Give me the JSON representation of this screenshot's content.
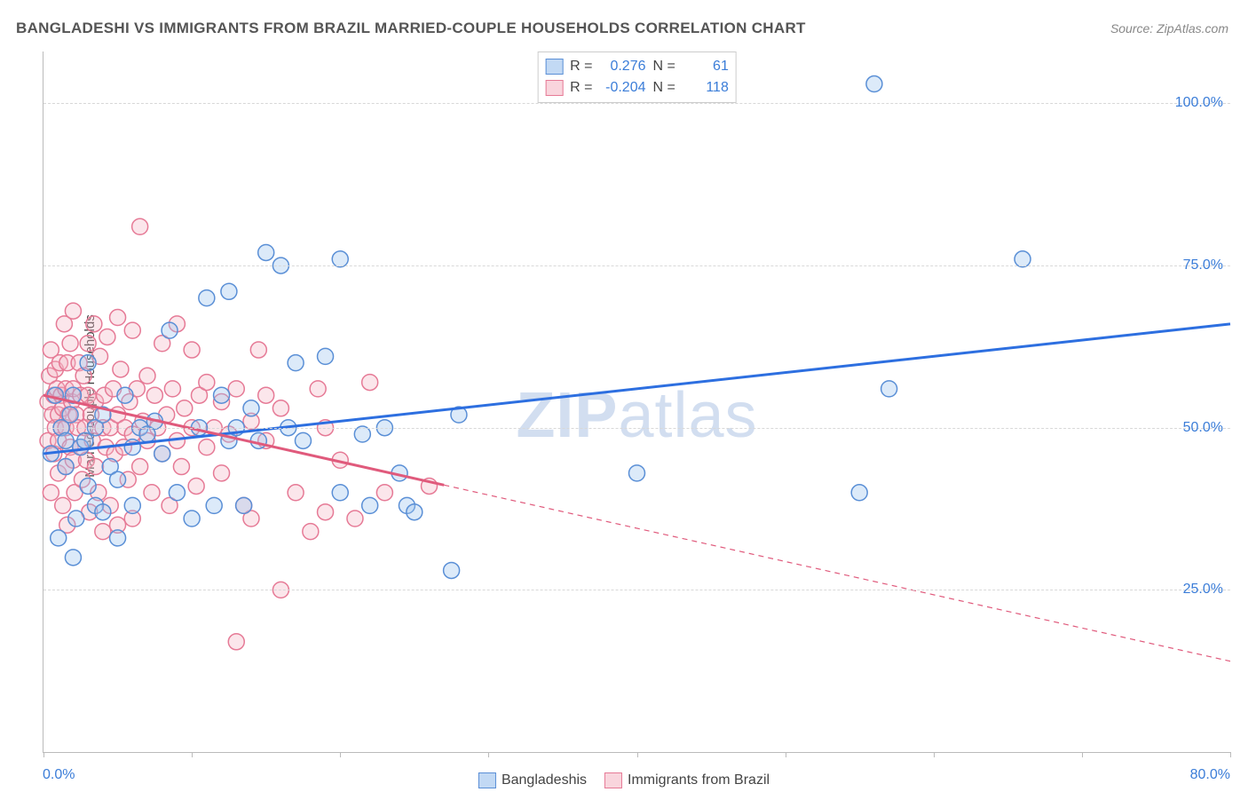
{
  "title": "BANGLADESHI VS IMMIGRANTS FROM BRAZIL MARRIED-COUPLE HOUSEHOLDS CORRELATION CHART",
  "source": "Source: ZipAtlas.com",
  "ylabel": "Married-couple Households",
  "watermark_bold": "ZIP",
  "watermark_rest": "atlas",
  "chart": {
    "type": "scatter",
    "xlim": [
      0,
      80
    ],
    "ylim": [
      0,
      108
    ],
    "xtick_positions": [
      0,
      10,
      20,
      30,
      40,
      50,
      60,
      70,
      80
    ],
    "xtick_labels_shown": {
      "0": "0.0%",
      "80": "80.0%"
    },
    "ytick_positions": [
      25,
      50,
      75,
      100
    ],
    "ytick_labels": {
      "25": "25.0%",
      "50": "50.0%",
      "75": "75.0%",
      "100": "100.0%"
    },
    "background_color": "#ffffff",
    "grid_color": "#d8d8d8",
    "axis_color": "#bbbbbb",
    "tick_label_color": "#3b7dd8",
    "marker_radius": 9,
    "marker_stroke_width": 1.5,
    "marker_fill_opacity": 0.35,
    "series": [
      {
        "name": "Bangladeshis",
        "color_fill": "#9cc2ef",
        "color_stroke": "#5a8fd6",
        "R": "0.276",
        "N": "61",
        "trend": {
          "x1": 0,
          "y1": 46,
          "x2": 80,
          "y2": 66,
          "solid_until_x": 80,
          "color": "#2d6fe0",
          "width": 3
        },
        "points": [
          [
            0.5,
            46
          ],
          [
            0.8,
            55
          ],
          [
            1,
            33
          ],
          [
            1.2,
            50
          ],
          [
            1.5,
            48
          ],
          [
            1.5,
            44
          ],
          [
            1.8,
            52
          ],
          [
            2,
            30
          ],
          [
            2,
            55
          ],
          [
            2.2,
            36
          ],
          [
            2.5,
            47
          ],
          [
            2.8,
            48
          ],
          [
            3,
            41
          ],
          [
            3,
            60
          ],
          [
            3.5,
            38
          ],
          [
            3.5,
            50
          ],
          [
            4,
            52
          ],
          [
            4,
            37
          ],
          [
            4.5,
            44
          ],
          [
            5,
            42
          ],
          [
            5,
            33
          ],
          [
            5.5,
            55
          ],
          [
            6,
            47
          ],
          [
            6,
            38
          ],
          [
            6.5,
            50
          ],
          [
            7,
            49
          ],
          [
            7.5,
            51
          ],
          [
            8,
            46
          ],
          [
            8.5,
            65
          ],
          [
            9,
            40
          ],
          [
            10,
            36
          ],
          [
            10.5,
            50
          ],
          [
            11,
            70
          ],
          [
            11.5,
            38
          ],
          [
            12,
            55
          ],
          [
            12.5,
            48
          ],
          [
            12.5,
            71
          ],
          [
            13,
            50
          ],
          [
            13.5,
            38
          ],
          [
            14,
            53
          ],
          [
            14.5,
            48
          ],
          [
            15,
            77
          ],
          [
            16,
            75
          ],
          [
            16.5,
            50
          ],
          [
            17,
            60
          ],
          [
            17.5,
            48
          ],
          [
            19,
            61
          ],
          [
            20,
            76
          ],
          [
            20,
            40
          ],
          [
            21.5,
            49
          ],
          [
            22,
            38
          ],
          [
            23,
            50
          ],
          [
            24,
            43
          ],
          [
            24.5,
            38
          ],
          [
            25,
            37
          ],
          [
            27.5,
            28
          ],
          [
            28,
            52
          ],
          [
            40,
            43
          ],
          [
            55,
            40
          ],
          [
            56,
            103
          ],
          [
            57,
            56
          ],
          [
            66,
            76
          ]
        ]
      },
      {
        "name": "Immigrants from Brazil",
        "color_fill": "#f4b8c6",
        "color_stroke": "#e67a96",
        "R": "-0.204",
        "N": "118",
        "trend": {
          "x1": 0,
          "y1": 55,
          "x2": 80,
          "y2": 14,
          "solid_until_x": 27,
          "color": "#e05a7c",
          "width": 3,
          "dash": "6,5"
        },
        "points": [
          [
            0.3,
            54
          ],
          [
            0.3,
            48
          ],
          [
            0.4,
            58
          ],
          [
            0.5,
            62
          ],
          [
            0.5,
            40
          ],
          [
            0.6,
            52
          ],
          [
            0.7,
            55
          ],
          [
            0.7,
            46
          ],
          [
            0.8,
            50
          ],
          [
            0.8,
            59
          ],
          [
            0.9,
            56
          ],
          [
            1,
            52
          ],
          [
            1,
            48
          ],
          [
            1,
            43
          ],
          [
            1.1,
            60
          ],
          [
            1.2,
            55
          ],
          [
            1.2,
            50
          ],
          [
            1.3,
            38
          ],
          [
            1.3,
            53
          ],
          [
            1.4,
            66
          ],
          [
            1.5,
            44
          ],
          [
            1.5,
            50
          ],
          [
            1.5,
            56
          ],
          [
            1.6,
            60
          ],
          [
            1.6,
            35
          ],
          [
            1.7,
            52
          ],
          [
            1.8,
            63
          ],
          [
            1.8,
            47
          ],
          [
            1.9,
            54
          ],
          [
            2,
            68
          ],
          [
            2,
            56
          ],
          [
            2,
            45
          ],
          [
            2.1,
            40
          ],
          [
            2.2,
            52
          ],
          [
            2.3,
            50
          ],
          [
            2.4,
            60
          ],
          [
            2.5,
            47
          ],
          [
            2.5,
            55
          ],
          [
            2.6,
            42
          ],
          [
            2.7,
            58
          ],
          [
            2.8,
            50
          ],
          [
            2.9,
            45
          ],
          [
            3,
            55
          ],
          [
            3,
            63
          ],
          [
            3.1,
            37
          ],
          [
            3.2,
            52
          ],
          [
            3.3,
            48
          ],
          [
            3.4,
            66
          ],
          [
            3.5,
            44
          ],
          [
            3.5,
            54
          ],
          [
            3.7,
            40
          ],
          [
            3.8,
            61
          ],
          [
            4,
            50
          ],
          [
            4,
            34
          ],
          [
            4.1,
            55
          ],
          [
            4.2,
            47
          ],
          [
            4.3,
            64
          ],
          [
            4.5,
            50
          ],
          [
            4.5,
            38
          ],
          [
            4.7,
            56
          ],
          [
            4.8,
            46
          ],
          [
            5,
            52
          ],
          [
            5,
            67
          ],
          [
            5,
            35
          ],
          [
            5.2,
            59
          ],
          [
            5.4,
            47
          ],
          [
            5.5,
            50
          ],
          [
            5.7,
            42
          ],
          [
            5.8,
            54
          ],
          [
            6,
            65
          ],
          [
            6,
            49
          ],
          [
            6,
            36
          ],
          [
            6.3,
            56
          ],
          [
            6.5,
            44
          ],
          [
            6.5,
            81
          ],
          [
            6.7,
            51
          ],
          [
            7,
            48
          ],
          [
            7,
            58
          ],
          [
            7.3,
            40
          ],
          [
            7.5,
            55
          ],
          [
            7.7,
            50
          ],
          [
            8,
            63
          ],
          [
            8,
            46
          ],
          [
            8.3,
            52
          ],
          [
            8.5,
            38
          ],
          [
            8.7,
            56
          ],
          [
            9,
            48
          ],
          [
            9,
            66
          ],
          [
            9.3,
            44
          ],
          [
            9.5,
            53
          ],
          [
            10,
            50
          ],
          [
            10,
            62
          ],
          [
            10.3,
            41
          ],
          [
            10.5,
            55
          ],
          [
            11,
            47
          ],
          [
            11,
            57
          ],
          [
            11.5,
            50
          ],
          [
            12,
            43
          ],
          [
            12,
            54
          ],
          [
            12.5,
            49
          ],
          [
            13,
            17
          ],
          [
            13,
            56
          ],
          [
            13.5,
            38
          ],
          [
            14,
            51
          ],
          [
            14,
            36
          ],
          [
            14.5,
            62
          ],
          [
            15,
            48
          ],
          [
            15,
            55
          ],
          [
            16,
            25
          ],
          [
            16,
            53
          ],
          [
            17,
            40
          ],
          [
            18,
            34
          ],
          [
            18.5,
            56
          ],
          [
            19,
            50
          ],
          [
            19,
            37
          ],
          [
            20,
            45
          ],
          [
            21,
            36
          ],
          [
            22,
            57
          ],
          [
            23,
            40
          ],
          [
            26,
            41
          ]
        ]
      }
    ]
  },
  "legend_bottom": [
    {
      "swatch": "blue",
      "label": "Bangladeshis"
    },
    {
      "swatch": "pink",
      "label": "Immigrants from Brazil"
    }
  ]
}
